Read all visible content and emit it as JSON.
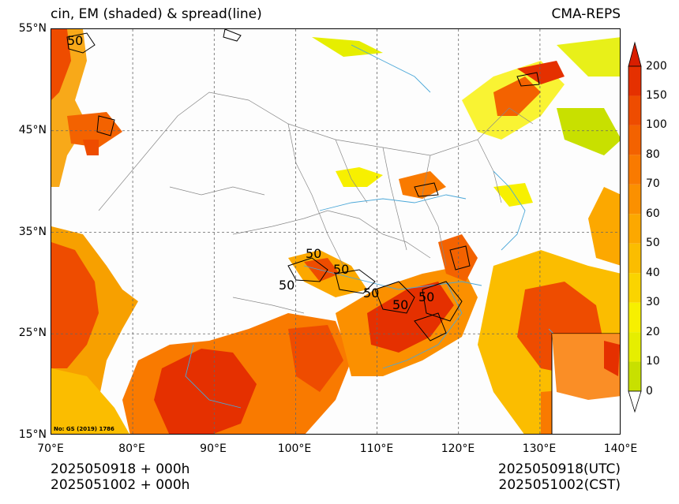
{
  "header": {
    "title_left": "cin, EM (shaded) & spread(line)",
    "title_right": "CMA-REPS"
  },
  "map": {
    "lat_labels": [
      "55°N",
      "45°N",
      "35°N",
      "25°N",
      "15°N"
    ],
    "lon_labels": [
      "70°E",
      "80°E",
      "90°E",
      "100°E",
      "110°E",
      "120°E",
      "130°E",
      "140°E"
    ],
    "extent": {
      "lon_min": 70,
      "lon_max": 140,
      "lat_min": 15,
      "lat_max": 55
    },
    "contour_labels": [
      "50",
      "50",
      "50",
      "50",
      "50",
      "50",
      "50"
    ],
    "map_number": "No: GS (2019) 1786",
    "colors": {
      "land_bg": "#fdfdfd",
      "river": "#4aa7d8",
      "border": "#888888",
      "contour": "#000000"
    }
  },
  "colorbar": {
    "levels": [
      "0",
      "10",
      "20",
      "30",
      "40",
      "50",
      "60",
      "70",
      "80",
      "100",
      "150",
      "200"
    ],
    "colors": [
      "#c8e000",
      "#e6ee00",
      "#f7f000",
      "#fad400",
      "#fbbd00",
      "#fca800",
      "#fb9000",
      "#f97a00",
      "#f36200",
      "#ee4c00",
      "#e53000"
    ],
    "over_color": "#d81e00"
  },
  "footer": {
    "init_line1": "2025050918  +  000h",
    "init_line2": "2025051002  +  000h",
    "valid_line1": "2025050918(UTC)",
    "valid_line2": "2025051002(CST)"
  }
}
